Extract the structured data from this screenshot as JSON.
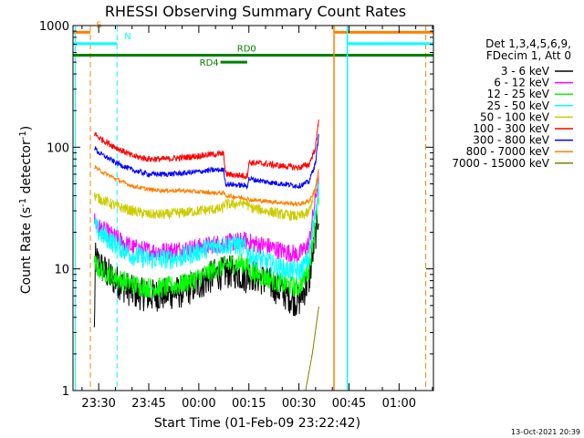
{
  "chart_data": {
    "type": "line",
    "title": "RHESSI Observing Summary Count Rates",
    "xlabel": "Start Time (01-Feb-09 23:22:42)",
    "ylabel": "Count Rate (s⁻¹ detector⁻¹)",
    "ylabel_parts": {
      "main": "Count Rate (s",
      "sup1": "-1",
      "mid": " detector",
      "sup2": "-1",
      "end": ")"
    },
    "yscale": "log",
    "ylim": [
      1,
      1000
    ],
    "xlim_minutes": [
      -7.7,
      100.3
    ],
    "x_ticks": [
      {
        "label": "23:30",
        "min": 0
      },
      {
        "label": "23:45",
        "min": 15
      },
      {
        "label": "00:00",
        "min": 30
      },
      {
        "label": "00:15",
        "min": 45
      },
      {
        "label": "00:30",
        "min": 60
      },
      {
        "label": "00:45",
        "min": 75
      },
      {
        "label": "01:00",
        "min": 90
      }
    ],
    "y_ticks": [
      {
        "label": "1",
        "value": 1
      },
      {
        "label": "10",
        "value": 10
      },
      {
        "label": "100",
        "value": 100
      },
      {
        "label": "1000",
        "value": 1000
      }
    ],
    "legend_header": [
      "Det 1,3,4,5,6,9,",
      "FDecim 1, Att 0"
    ],
    "legend_position": "right",
    "timestamp": "13-Oct-2021 20:39",
    "series": [
      {
        "name": "3 - 6 keV",
        "color": "#000000",
        "amp": 0.32,
        "x": [
          -1.3,
          -1,
          2,
          5,
          10,
          15,
          20,
          25,
          30,
          35,
          40,
          42,
          44.5,
          45,
          48,
          50,
          55,
          59,
          60,
          63,
          66
        ],
        "y": [
          3,
          12,
          9.5,
          8,
          6.5,
          6,
          6.2,
          6.5,
          7.5,
          9,
          9.5,
          9.2,
          8.5,
          9.2,
          8.5,
          8,
          6.5,
          5.5,
          5.5,
          8,
          30
        ]
      },
      {
        "name": "6 - 12 keV",
        "color": "#ff00ff",
        "amp": 0.18,
        "x": [
          -1.3,
          0,
          5,
          10,
          15,
          20,
          25,
          30,
          35,
          40,
          44.5,
          45,
          50,
          55,
          60,
          63,
          66
        ],
        "y": [
          25,
          22,
          18,
          15,
          14,
          14,
          14.5,
          15,
          16,
          16.5,
          17,
          16.5,
          15.5,
          14,
          13,
          16,
          60
        ]
      },
      {
        "name": "12 - 25 keV",
        "color": "#00ff00",
        "amp": 0.2,
        "x": [
          -1.3,
          0,
          5,
          10,
          15,
          20,
          25,
          30,
          35,
          40,
          42,
          44.5,
          45,
          50,
          55,
          60,
          63,
          66
        ],
        "y": [
          11,
          10,
          8.5,
          7.5,
          7,
          7,
          7.5,
          8.5,
          10,
          11,
          11,
          11,
          9.5,
          8.5,
          7.5,
          7,
          10,
          40
        ]
      },
      {
        "name": "25 - 50 keV",
        "color": "#00ffff",
        "amp": 0.2,
        "x": [
          -1.3,
          0,
          5,
          10,
          15,
          20,
          25,
          30,
          35,
          40,
          42,
          44.5,
          45,
          50,
          55,
          60,
          63,
          66
        ],
        "y": [
          23,
          20,
          16,
          13,
          12,
          12,
          12.5,
          14,
          15.5,
          16,
          15.5,
          15,
          13,
          11.5,
          10,
          9.5,
          12,
          50
        ]
      },
      {
        "name": "50 - 100 keV",
        "color": "#cccc00",
        "amp": 0.1,
        "x": [
          -1.3,
          0,
          5,
          10,
          15,
          20,
          25,
          30,
          35,
          37,
          37.5,
          40,
          44.5,
          45,
          50,
          55,
          60,
          63,
          66
        ],
        "y": [
          40,
          38,
          33,
          30,
          28,
          28,
          29,
          30,
          31,
          31,
          34,
          34,
          35,
          32,
          30,
          28,
          27,
          29,
          60
        ]
      },
      {
        "name": "100 - 300 keV",
        "color": "#ff0000",
        "amp": 0.06,
        "x": [
          -1.3,
          0,
          5,
          10,
          15,
          20,
          25,
          30,
          35,
          37.5,
          38,
          44.5,
          45,
          50,
          55,
          60,
          63,
          65,
          66
        ],
        "y": [
          130,
          120,
          100,
          85,
          80,
          80,
          82,
          85,
          88,
          88,
          60,
          58,
          75,
          73,
          70,
          68,
          72,
          100,
          180
        ]
      },
      {
        "name": "300 - 800 keV",
        "color": "#0000ff",
        "amp": 0.05,
        "x": [
          -1.3,
          0,
          5,
          10,
          15,
          20,
          25,
          30,
          35,
          37.5,
          38,
          44.5,
          45,
          50,
          55,
          60,
          63,
          65,
          66
        ],
        "y": [
          100,
          90,
          75,
          65,
          60,
          60,
          61,
          63,
          65,
          65,
          50,
          48,
          55,
          52,
          50,
          48,
          52,
          75,
          130
        ]
      },
      {
        "name": "800 - 7000 keV",
        "color": "#ff8000",
        "amp": 0.04,
        "x": [
          -1.3,
          0,
          5,
          10,
          15,
          20,
          25,
          30,
          35,
          37.5,
          38,
          44.5,
          45,
          50,
          55,
          60,
          63,
          65,
          66
        ],
        "y": [
          70,
          65,
          55,
          48,
          45,
          44,
          44,
          43,
          42,
          42,
          40,
          38,
          37,
          36,
          35,
          34,
          36,
          45,
          70
        ]
      },
      {
        "name": "7000 - 15000 keV",
        "color": "#808000",
        "amp": 0,
        "x": [
          62,
          64,
          66
        ],
        "y": [
          1,
          2,
          5
        ]
      }
    ],
    "status_markers": [
      {
        "label": "S",
        "color": "#ff8000",
        "ypos": 880,
        "bars": [
          [
            -7.7,
            -2.5
          ],
          [
            70.5,
            100.3
          ]
        ],
        "vlines": [
          -2.5,
          98
        ],
        "dashed": true
      },
      {
        "label": "N",
        "color": "#00ffff",
        "ypos": 710,
        "bars": [
          [
            -7.7,
            5.5
          ],
          [
            74.5,
            100.3
          ]
        ],
        "vlines": [
          -7,
          5.5,
          74.5
        ],
        "dashed_at": [
          5.5
        ]
      },
      {
        "label": "RD4",
        "color": "#008000",
        "ypos": 500,
        "bars": [
          [
            36.5,
            44.5
          ]
        ]
      },
      {
        "label": "RD0",
        "color": "#008000",
        "ypos": 570,
        "bars": [
          [
            -7.7,
            100.3
          ]
        ]
      }
    ],
    "saa_lines": [
      {
        "x": 70.5,
        "color": "#ff8000"
      },
      {
        "x": 74.5,
        "color": "#00ffff"
      }
    ]
  }
}
